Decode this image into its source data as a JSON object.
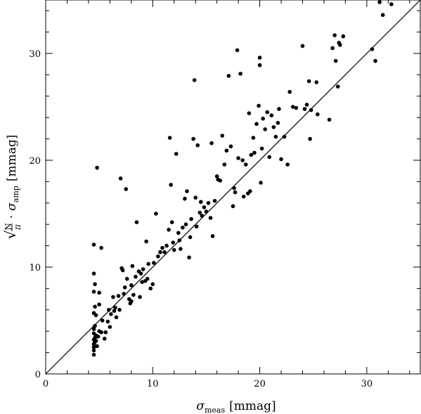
{
  "chart_data": {
    "type": "scatter",
    "title": "",
    "xlabel": {
      "symbol": "σ",
      "sub": "meas",
      "unit": "[mmag]"
    },
    "ylabel": {
      "root": "√",
      "num": "N",
      "den": "π",
      "dot": "·",
      "symbol": "σ",
      "sub": "amp",
      "unit": "[mmag]"
    },
    "xlim": [
      0,
      35
    ],
    "ylim": [
      0,
      35
    ],
    "x_ticks": [
      0,
      10,
      20,
      30
    ],
    "y_ticks": [
      0,
      10,
      20,
      30
    ],
    "minor_step": 2,
    "tick_labels": {
      "x": [
        "0",
        "10",
        "20",
        "30"
      ],
      "y": [
        "0",
        "10",
        "20",
        "30"
      ]
    },
    "grid": false,
    "reference_line": {
      "from": [
        0,
        0
      ],
      "to": [
        35,
        35
      ]
    },
    "points": [
      [
        4.5,
        1.8
      ],
      [
        4.5,
        2.2
      ],
      [
        4.5,
        2.5
      ],
      [
        4.5,
        2.8
      ],
      [
        4.6,
        3.0
      ],
      [
        4.5,
        3.2
      ],
      [
        4.6,
        3.4
      ],
      [
        4.7,
        3.6
      ],
      [
        4.5,
        3.8
      ],
      [
        4.8,
        2.6
      ],
      [
        4.7,
        3.1
      ],
      [
        4.9,
        3.5
      ],
      [
        4.5,
        4.2
      ],
      [
        4.6,
        4.5
      ],
      [
        4.7,
        5.5
      ],
      [
        4.5,
        5.7
      ],
      [
        4.6,
        6.3
      ],
      [
        4.5,
        7.7
      ],
      [
        4.6,
        8.4
      ],
      [
        4.5,
        9.4
      ],
      [
        4.5,
        12.1
      ],
      [
        4.8,
        19.3
      ],
      [
        5.0,
        7.6
      ],
      [
        5.0,
        6.5
      ],
      [
        5.2,
        11.8
      ],
      [
        5.0,
        4.0
      ],
      [
        5.2,
        3.9
      ],
      [
        5.3,
        5.0
      ],
      [
        5.5,
        3.3
      ],
      [
        5.6,
        3.9
      ],
      [
        5.8,
        4.9
      ],
      [
        5.9,
        6.0
      ],
      [
        6.0,
        4.4
      ],
      [
        6.1,
        5.6
      ],
      [
        6.3,
        7.2
      ],
      [
        6.4,
        5.9
      ],
      [
        6.5,
        6.2
      ],
      [
        6.6,
        5.3
      ],
      [
        6.8,
        7.3
      ],
      [
        6.9,
        6.0
      ],
      [
        7.0,
        18.3
      ],
      [
        7.1,
        9.9
      ],
      [
        7.2,
        9.7
      ],
      [
        7.3,
        7.5
      ],
      [
        7.4,
        8.1
      ],
      [
        7.5,
        17.3
      ],
      [
        7.6,
        8.9
      ],
      [
        7.8,
        7.0
      ],
      [
        7.9,
        6.6
      ],
      [
        8.0,
        6.8
      ],
      [
        8.0,
        8.3
      ],
      [
        8.1,
        10.1
      ],
      [
        8.2,
        7.4
      ],
      [
        8.4,
        9.1
      ],
      [
        8.5,
        14.2
      ],
      [
        8.7,
        9.6
      ],
      [
        8.8,
        7.2
      ],
      [
        8.9,
        9.4
      ],
      [
        9.0,
        8.6
      ],
      [
        9.1,
        9.8
      ],
      [
        9.3,
        8.7
      ],
      [
        9.4,
        12.4
      ],
      [
        9.5,
        8.9
      ],
      [
        9.6,
        10.3
      ],
      [
        9.8,
        8.0
      ],
      [
        10.0,
        8.4
      ],
      [
        10.1,
        10.4
      ],
      [
        10.3,
        15.0
      ],
      [
        10.5,
        11.0
      ],
      [
        10.7,
        11.4
      ],
      [
        10.9,
        11.8
      ],
      [
        11.1,
        11.4
      ],
      [
        11.3,
        12.0
      ],
      [
        11.5,
        13.5
      ],
      [
        11.6,
        22.1
      ],
      [
        11.7,
        17.7
      ],
      [
        11.8,
        14.2
      ],
      [
        11.9,
        12.3
      ],
      [
        12.0,
        11.6
      ],
      [
        12.2,
        20.6
      ],
      [
        12.4,
        13.2
      ],
      [
        12.5,
        12.5
      ],
      [
        12.6,
        11.7
      ],
      [
        12.8,
        13.7
      ],
      [
        13.0,
        16.4
      ],
      [
        13.1,
        14.0
      ],
      [
        13.2,
        17.1
      ],
      [
        13.4,
        10.9
      ],
      [
        13.5,
        12.8
      ],
      [
        13.6,
        14.5
      ],
      [
        13.8,
        22.0
      ],
      [
        13.9,
        27.5
      ],
      [
        14.0,
        16.5
      ],
      [
        14.1,
        13.8
      ],
      [
        14.2,
        21.4
      ],
      [
        14.4,
        15.1
      ],
      [
        14.5,
        16.1
      ],
      [
        14.6,
        14.8
      ],
      [
        14.8,
        15.6
      ],
      [
        15.0,
        15.2
      ],
      [
        15.2,
        16.0
      ],
      [
        15.4,
        14.6
      ],
      [
        15.5,
        21.6
      ],
      [
        15.6,
        12.9
      ],
      [
        15.8,
        16.2
      ],
      [
        16.0,
        18.5
      ],
      [
        16.1,
        18.2
      ],
      [
        16.3,
        18.1
      ],
      [
        16.5,
        22.3
      ],
      [
        16.7,
        19.6
      ],
      [
        16.9,
        20.9
      ],
      [
        17.1,
        27.9
      ],
      [
        17.3,
        21.3
      ],
      [
        17.5,
        15.7
      ],
      [
        17.6,
        17.4
      ],
      [
        17.7,
        17.0
      ],
      [
        17.9,
        30.3
      ],
      [
        18.0,
        20.2
      ],
      [
        18.2,
        28.1
      ],
      [
        18.4,
        20.0
      ],
      [
        18.5,
        16.6
      ],
      [
        18.7,
        19.6
      ],
      [
        18.9,
        16.9
      ],
      [
        19.0,
        24.4
      ],
      [
        19.1,
        17.1
      ],
      [
        19.2,
        20.5
      ],
      [
        19.4,
        22.1
      ],
      [
        19.5,
        20.7
      ],
      [
        19.7,
        23.4
      ],
      [
        19.9,
        25.1
      ],
      [
        20.0,
        29.6
      ],
      [
        20.0,
        28.9
      ],
      [
        20.1,
        17.9
      ],
      [
        20.2,
        21.1
      ],
      [
        20.3,
        23.9
      ],
      [
        20.5,
        22.9
      ],
      [
        20.7,
        24.5
      ],
      [
        20.9,
        20.3
      ],
      [
        21.1,
        24.2
      ],
      [
        21.3,
        23.1
      ],
      [
        21.5,
        22.2
      ],
      [
        21.7,
        23.5
      ],
      [
        21.8,
        24.8
      ],
      [
        22.0,
        20.1
      ],
      [
        22.3,
        22.2
      ],
      [
        22.6,
        19.6
      ],
      [
        22.8,
        26.4
      ],
      [
        23.1,
        25.0
      ],
      [
        23.4,
        24.9
      ],
      [
        24.0,
        30.7
      ],
      [
        24.2,
        24.8
      ],
      [
        24.4,
        25.2
      ],
      [
        24.6,
        27.4
      ],
      [
        24.7,
        22.0
      ],
      [
        24.8,
        24.7
      ],
      [
        25.3,
        27.3
      ],
      [
        25.4,
        24.3
      ],
      [
        26.5,
        23.8
      ],
      [
        26.8,
        30.5
      ],
      [
        27.0,
        31.7
      ],
      [
        27.1,
        29.3
      ],
      [
        27.3,
        26.9
      ],
      [
        27.4,
        31.0
      ],
      [
        27.5,
        30.8
      ],
      [
        27.8,
        31.6
      ],
      [
        30.5,
        30.4
      ],
      [
        30.8,
        29.3
      ],
      [
        31.2,
        34.8
      ],
      [
        31.5,
        33.6
      ],
      [
        32.3,
        34.6
      ]
    ]
  }
}
